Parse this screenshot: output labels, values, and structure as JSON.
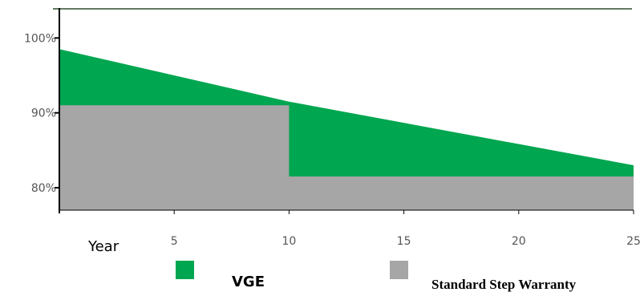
{
  "chart_data": {
    "type": "area",
    "title": "",
    "xlabel": "Year",
    "ylabel": "",
    "xlim": [
      0,
      25
    ],
    "ylim": [
      77,
      104
    ],
    "x_ticks": [
      5,
      10,
      15,
      20,
      25
    ],
    "y_ticks": [
      {
        "value": 100,
        "label": "100%"
      },
      {
        "value": 90,
        "label": "90%"
      },
      {
        "value": 80,
        "label": "80%"
      }
    ],
    "grid": false,
    "legend_position": "bottom",
    "series": [
      {
        "name": "VGE",
        "color": "#00a650",
        "points": [
          [
            0,
            98.5
          ],
          [
            10,
            91.5
          ],
          [
            25,
            83.0
          ]
        ]
      },
      {
        "name": "Standard Step Warranty",
        "color": "#a6a6a6",
        "points": [
          [
            0,
            91.0
          ],
          [
            10,
            91.0
          ],
          [
            10,
            81.5
          ],
          [
            25,
            81.5
          ]
        ]
      }
    ]
  }
}
